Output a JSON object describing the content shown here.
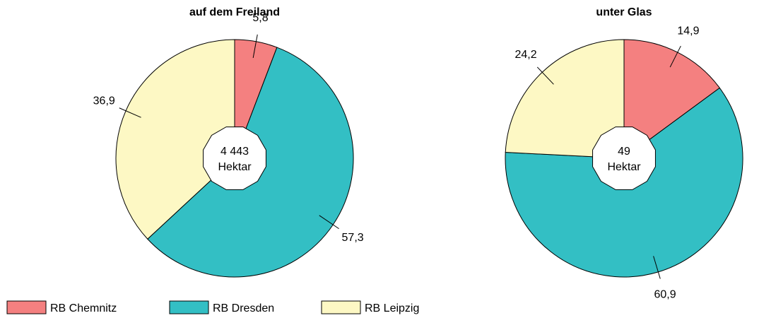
{
  "chart_data": [
    {
      "type": "pie",
      "title": "auf dem Freiland",
      "values": [
        5.8,
        57.3,
        36.9
      ],
      "value_labels": [
        "5,8",
        "57,3",
        "36,9"
      ],
      "center_text": [
        "4 443",
        "Hektar"
      ]
    },
    {
      "type": "pie",
      "title": "unter Glas",
      "values": [
        14.9,
        60.9,
        24.2
      ],
      "value_labels": [
        "14,9",
        "60,9",
        "24,2"
      ],
      "center_text": [
        "49",
        "Hektar"
      ]
    }
  ],
  "legend": {
    "categories": [
      "RB Chemnitz",
      "RB Dresden",
      "RB Leipzig"
    ],
    "colors": [
      "#f48080",
      "#33bfc4",
      "#fdf8c4"
    ]
  }
}
